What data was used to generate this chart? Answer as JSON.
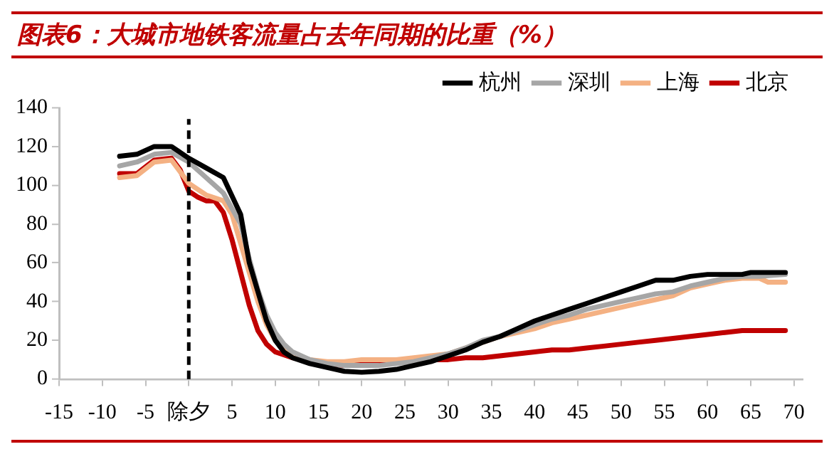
{
  "chart_data": {
    "type": "line",
    "title": "图表6：大城市地铁客流量占去年同期的比重（%）",
    "series": [
      {
        "name": "杭州",
        "color": "#000000",
        "x": [
          -8,
          -6,
          -4,
          -2,
          0,
          2,
          4,
          6,
          7,
          8,
          9,
          10,
          11,
          12,
          14,
          16,
          18,
          20,
          22,
          24,
          26,
          28,
          30,
          32,
          34,
          36,
          38,
          40,
          42,
          44,
          46,
          48,
          50,
          52,
          54,
          56,
          58,
          60,
          62,
          64,
          65,
          67,
          69
        ],
        "values": [
          115,
          116,
          120,
          120,
          114,
          109,
          104,
          85,
          60,
          45,
          30,
          20,
          14,
          11,
          8,
          6,
          4,
          3.5,
          4,
          5,
          7,
          9,
          12,
          15,
          19,
          22,
          26,
          30,
          33,
          36,
          39,
          42,
          45,
          48,
          51,
          51,
          53,
          54,
          54,
          54,
          55,
          55,
          55
        ]
      },
      {
        "name": "深圳",
        "color": "#a6a6a6",
        "x": [
          -8,
          -6,
          -4,
          -2,
          0,
          2,
          4,
          6,
          7,
          8,
          9,
          10,
          11,
          12,
          14,
          16,
          18,
          20,
          22,
          24,
          26,
          28,
          30,
          32,
          34,
          36,
          38,
          40,
          42,
          44,
          46,
          48,
          50,
          52,
          54,
          56,
          58,
          60,
          62,
          64,
          66,
          69
        ],
        "values": [
          110,
          112,
          116,
          117,
          112,
          104,
          96,
          80,
          62,
          46,
          33,
          24,
          18,
          14,
          10,
          8,
          7,
          7,
          7,
          8,
          9,
          11,
          13,
          16,
          20,
          22,
          25,
          28,
          31,
          33,
          36,
          38,
          40,
          42,
          44,
          45,
          48,
          50,
          52,
          53,
          53,
          54
        ]
      },
      {
        "name": "上海",
        "color": "#f4b183",
        "x": [
          -8,
          -6,
          -4,
          -2,
          0,
          2,
          4,
          5,
          6,
          7,
          8,
          9,
          10,
          11,
          12,
          14,
          16,
          18,
          20,
          22,
          24,
          26,
          28,
          30,
          32,
          34,
          36,
          38,
          40,
          42,
          44,
          46,
          48,
          50,
          52,
          54,
          56,
          58,
          60,
          62,
          64,
          66,
          67,
          69
        ],
        "values": [
          104,
          105,
          112,
          113,
          101,
          95,
          92,
          85,
          70,
          55,
          40,
          28,
          20,
          15,
          12,
          10,
          9,
          9,
          10,
          10,
          10,
          11,
          12,
          13,
          16,
          19,
          22,
          24,
          26,
          29,
          31,
          33,
          35,
          37,
          39,
          41,
          43,
          47,
          49,
          51,
          52,
          52,
          50,
          50
        ]
      },
      {
        "name": "北京",
        "color": "#c00000",
        "x": [
          -8,
          -6,
          -4,
          -2,
          -1,
          0,
          1,
          2,
          3,
          4,
          5,
          6,
          7,
          8,
          9,
          10,
          12,
          14,
          16,
          18,
          20,
          22,
          24,
          26,
          28,
          30,
          32,
          34,
          36,
          38,
          40,
          42,
          44,
          46,
          48,
          50,
          52,
          54,
          56,
          58,
          60,
          62,
          64,
          66,
          69
        ],
        "values": [
          106,
          106,
          113,
          114,
          108,
          97,
          94,
          92,
          92,
          86,
          72,
          55,
          38,
          25,
          18,
          14,
          11,
          9,
          8,
          7,
          8,
          9,
          9,
          9,
          10,
          10,
          11,
          11,
          12,
          13,
          14,
          15,
          15,
          16,
          17,
          18,
          19,
          20,
          21,
          22,
          23,
          24,
          25,
          25,
          25
        ]
      }
    ],
    "xlim": [
      -15,
      71
    ],
    "xticks": [
      -15,
      -10,
      -5,
      {
        "value": 0,
        "label": "除夕"
      },
      5,
      10,
      15,
      20,
      25,
      30,
      35,
      40,
      45,
      50,
      55,
      60,
      65,
      70
    ],
    "ylim": [
      0,
      140
    ],
    "yticks": [
      0,
      20,
      40,
      60,
      80,
      100,
      120,
      140
    ],
    "ref_lines": [
      {
        "axis": "x",
        "value": 0,
        "color": "#000000",
        "line_style": "dashed"
      }
    ],
    "grid": false,
    "legend": "top",
    "marker": "none",
    "line_style": "solid"
  }
}
